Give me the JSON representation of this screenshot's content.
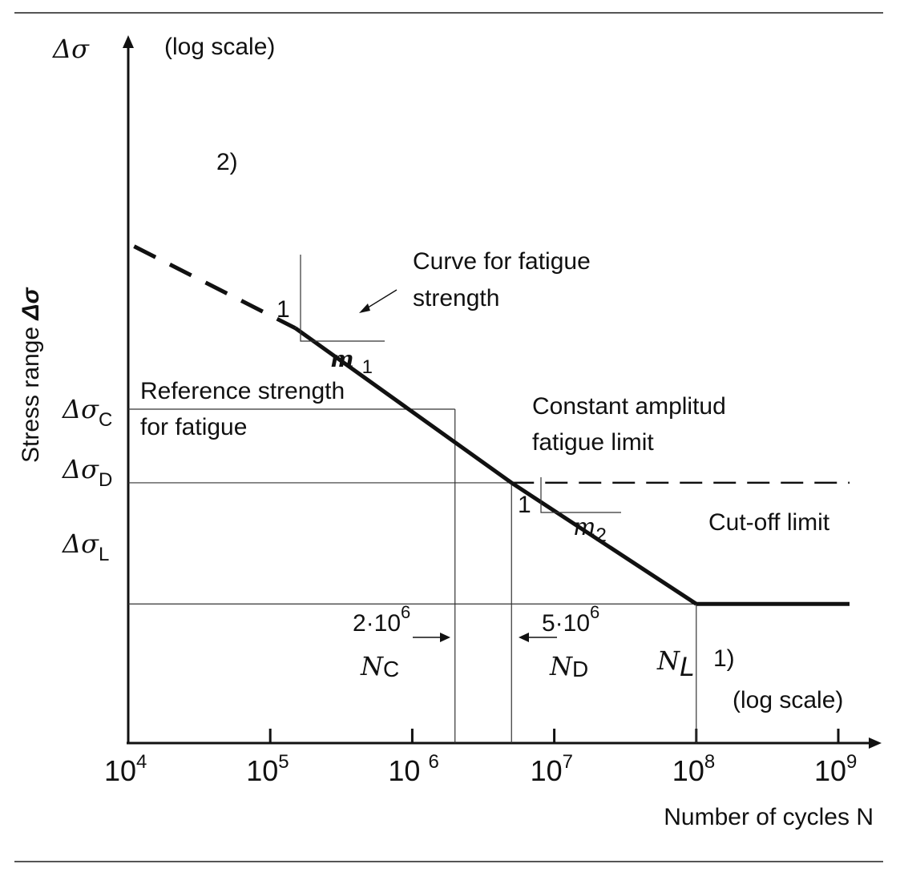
{
  "chart_data": {
    "type": "line",
    "x_scale": "log",
    "y_scale": "log",
    "x_ticks": [
      {
        "value": 10000,
        "base": "10",
        "exp": "4"
      },
      {
        "value": 100000,
        "base": "10",
        "exp": "5"
      },
      {
        "value": 1000000,
        "base": "10 ",
        "exp": "6"
      },
      {
        "value": 10000000,
        "base": "10",
        "exp": "7"
      },
      {
        "value": 100000000,
        "base": "10",
        "exp": "8"
      },
      {
        "value": 1000000000,
        "base": "10",
        "exp": "9"
      }
    ],
    "xlim": [
      10000,
      1300000000
    ],
    "xlabel": "Number of cycles N",
    "xlabel_scale": "(log scale)",
    "ylabel": "Stress range",
    "ylabel_symbol": "Δσ",
    "y_axis_symbol": "Δσ",
    "ylabel_scale": "(log scale)",
    "y_levels": {
      "C": {
        "sym": "Δσ",
        "sub": "C"
      },
      "D": {
        "sym": "Δσ",
        "sub": "D"
      },
      "L": {
        "sym": "Δσ",
        "sub": "L"
      }
    },
    "points": {
      "N_C": 2000000,
      "N_D": 5000000,
      "N_L": 100000000
    },
    "segments": {
      "m1_dashed": {
        "x": [
          11000,
          150000
        ],
        "y": [
          5.1,
          2.8
        ]
      },
      "m1_solid": {
        "x": [
          150000,
          5000000
        ],
        "y": [
          2.8,
          0.9
        ]
      },
      "m2_solid": {
        "x": [
          5000000,
          100000000
        ],
        "y": [
          0.9,
          0.37
        ]
      },
      "cutoff": {
        "x": [
          100000000,
          1200000000
        ],
        "y": [
          0.37,
          0.37
        ]
      },
      "cafl_dashed": {
        "x": [
          5000000,
          1200000000
        ],
        "y": [
          0.9,
          0.9
        ]
      }
    },
    "annotations": {
      "curve_line1": "Curve for fatigue",
      "curve_line2": "strength",
      "ref_line1": "Reference strength",
      "ref_line2": "for fatigue",
      "cafl_line1": "Constant amplitud",
      "cafl_line2": "fatigue limit",
      "cutoff": "Cut-off limit",
      "note2": "2)",
      "note1": "1)",
      "slope1_rise": "1",
      "slope1_m": "m",
      "slope1_sub": "1",
      "slope2_rise": "1",
      "slope2_m": "m",
      "slope2_sub": "2",
      "nc_value_base": "2·10",
      "nc_value_exp": "6",
      "nd_value_base": "5·10",
      "nd_value_exp": "6",
      "nc_sym": "N",
      "nc_sub": "C",
      "nd_sym": "N",
      "nd_sub": "D",
      "nl_sym": "N",
      "nl_sub": "L"
    }
  }
}
